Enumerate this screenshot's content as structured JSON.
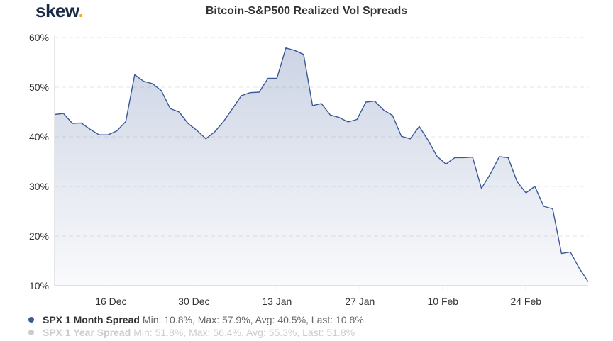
{
  "header": {
    "logo_text": "skew",
    "logo_dot": "."
  },
  "chart_data": {
    "type": "area",
    "title": "Bitcoin-S&P500 Realized Vol Spreads",
    "xlabel": "",
    "ylabel": "",
    "ylim": [
      10,
      60
    ],
    "yticks": [
      10,
      20,
      30,
      40,
      50,
      60
    ],
    "ytick_labels": [
      "10%",
      "20%",
      "30%",
      "40%",
      "50%",
      "60%"
    ],
    "xticks": [
      {
        "label": "16 Dec",
        "day": 16
      },
      {
        "label": "30 Dec",
        "day": 30
      },
      {
        "label": "13 Jan",
        "day": 44
      },
      {
        "label": "27 Jan",
        "day": 58
      },
      {
        "label": "10 Feb",
        "day": 72
      },
      {
        "label": "24 Feb",
        "day": 86
      }
    ],
    "grid": true,
    "series": [
      {
        "name": "SPX 1 Month Spread",
        "color": "#3b5998",
        "visible": true,
        "points": [
          [
            6.5,
            44.5
          ],
          [
            8,
            44.7
          ],
          [
            9.5,
            42.7
          ],
          [
            11,
            42.8
          ],
          [
            12.5,
            41.5
          ],
          [
            14,
            40.4
          ],
          [
            15.5,
            40.4
          ],
          [
            17,
            41.2
          ],
          [
            18.5,
            43.1
          ],
          [
            20,
            52.5
          ],
          [
            21.5,
            51.2
          ],
          [
            23,
            50.7
          ],
          [
            24.5,
            49.3
          ],
          [
            26,
            45.7
          ],
          [
            27.5,
            45.0
          ],
          [
            29,
            42.7
          ],
          [
            30.5,
            41.3
          ],
          [
            32,
            39.6
          ],
          [
            33.5,
            41.0
          ],
          [
            35,
            43.1
          ],
          [
            36.5,
            45.7
          ],
          [
            38,
            48.3
          ],
          [
            39.5,
            48.9
          ],
          [
            41,
            49.0
          ],
          [
            42.5,
            51.8
          ],
          [
            44,
            51.8
          ],
          [
            45.5,
            57.9
          ],
          [
            47,
            57.4
          ],
          [
            48.5,
            56.6
          ],
          [
            50,
            46.3
          ],
          [
            51.5,
            46.7
          ],
          [
            53,
            44.4
          ],
          [
            54.5,
            43.9
          ],
          [
            56,
            43.0
          ],
          [
            57.5,
            43.5
          ],
          [
            59,
            47.0
          ],
          [
            60.5,
            47.2
          ],
          [
            62,
            45.4
          ],
          [
            63.5,
            44.3
          ],
          [
            65,
            40.1
          ],
          [
            66.5,
            39.6
          ],
          [
            68,
            42.1
          ],
          [
            69.5,
            39.3
          ],
          [
            71,
            36.1
          ],
          [
            72.5,
            34.5
          ],
          [
            74,
            35.8
          ],
          [
            75.5,
            35.8
          ],
          [
            77,
            35.9
          ],
          [
            78.5,
            29.6
          ],
          [
            80,
            32.5
          ],
          [
            81.5,
            36.0
          ],
          [
            83,
            35.8
          ],
          [
            84.5,
            31.0
          ],
          [
            86,
            28.7
          ],
          [
            87.5,
            30.0
          ],
          [
            89,
            26.0
          ],
          [
            90.5,
            25.5
          ],
          [
            92,
            16.5
          ],
          [
            93.5,
            16.8
          ],
          [
            95,
            13.5
          ],
          [
            96.5,
            10.8
          ]
        ]
      },
      {
        "name": "SPX 1 Year Spread",
        "color": "#cccccc",
        "visible": false,
        "points": []
      }
    ],
    "legend": [
      {
        "name": "SPX 1 Month Spread",
        "stats": "Min: 10.8%, Max: 57.9%, Avg: 40.5%, Last: 10.8%",
        "active": true
      },
      {
        "name": "SPX 1 Year Spread",
        "stats": "Min: 51.8%, Max: 56.4%, Avg: 55.3%, Last: 51.8%",
        "active": false
      }
    ],
    "legend_position": "bottom-left"
  }
}
